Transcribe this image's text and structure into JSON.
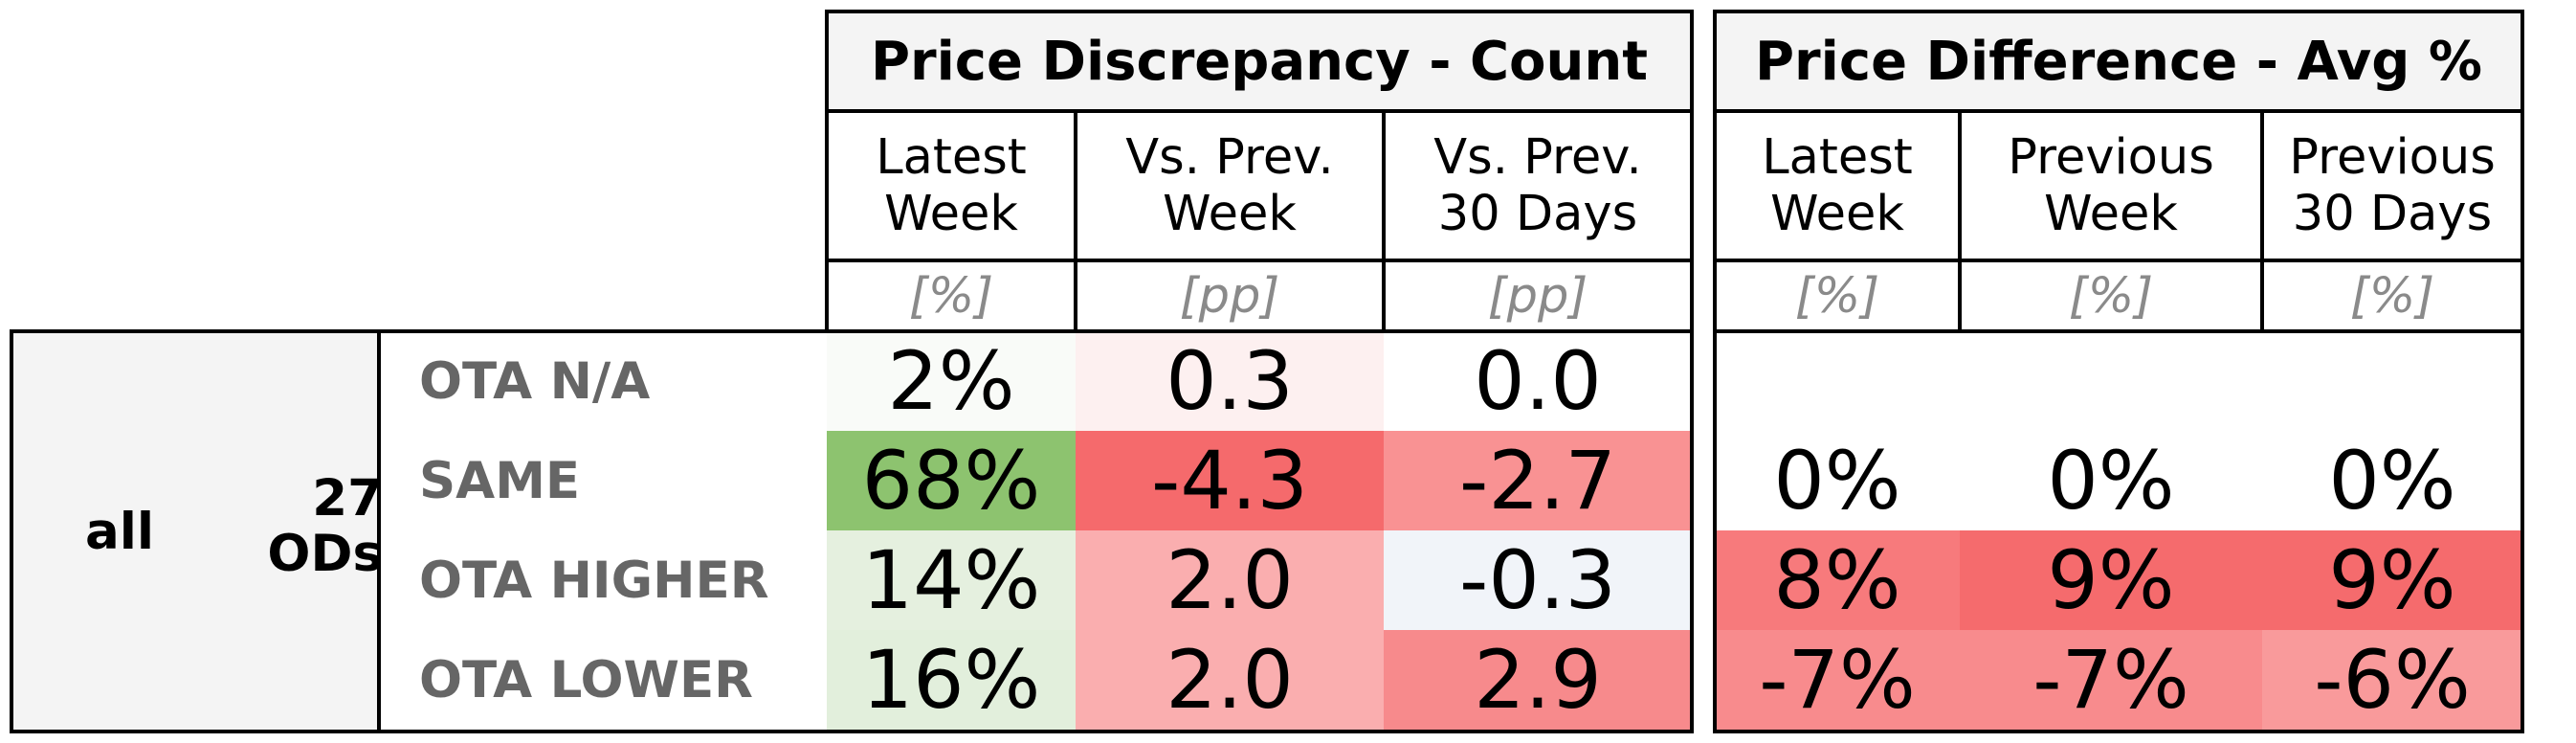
{
  "groups": {
    "count_title": "Price Discrepancy - Count",
    "diff_title": "Price Difference - Avg %"
  },
  "count_columns": [
    {
      "label": "Latest\nWeek",
      "unit": "[%]"
    },
    {
      "label": "Vs. Prev.\nWeek",
      "unit": "[pp]"
    },
    {
      "label": "Vs. Prev.\n30 Days",
      "unit": "[pp]"
    }
  ],
  "diff_columns": [
    {
      "label": "Latest\nWeek",
      "unit": "[%]"
    },
    {
      "label": "Previous\nWeek",
      "unit": "[%]"
    },
    {
      "label": "Previous\n30 Days",
      "unit": "[%]"
    }
  ],
  "segment": {
    "name": "all",
    "ods": "27\nODs"
  },
  "rows": [
    {
      "label": "OTA N/A",
      "count": [
        {
          "v": "2%",
          "bg": "#f9fbf8"
        },
        {
          "v": "0.3",
          "bg": "#fdf0f0"
        },
        {
          "v": "0.0",
          "bg": "#ffffff"
        }
      ],
      "diff": [
        {
          "v": "",
          "bg": "#ffffff"
        },
        {
          "v": "",
          "bg": "#ffffff"
        },
        {
          "v": "",
          "bg": "#ffffff"
        }
      ]
    },
    {
      "label": "SAME",
      "count": [
        {
          "v": "68%",
          "bg": "#8dc36f"
        },
        {
          "v": "-4.3",
          "bg": "#f56a6c"
        },
        {
          "v": "-2.7",
          "bg": "#f99293"
        }
      ],
      "diff": [
        {
          "v": "0%",
          "bg": "#ffffff"
        },
        {
          "v": "0%",
          "bg": "#ffffff"
        },
        {
          "v": "0%",
          "bg": "#ffffff"
        }
      ]
    },
    {
      "label": "OTA HIGHER",
      "count": [
        {
          "v": "14%",
          "bg": "#e5f0df"
        },
        {
          "v": "2.0",
          "bg": "#faaeaf"
        },
        {
          "v": "-0.3",
          "bg": "#f1f4f9"
        }
      ],
      "diff": [
        {
          "v": "8%",
          "bg": "#f77a7c"
        },
        {
          "v": "9%",
          "bg": "#f56b6d"
        },
        {
          "v": "9%",
          "bg": "#f56b6d"
        }
      ]
    },
    {
      "label": "OTA LOWER",
      "count": [
        {
          "v": "16%",
          "bg": "#e2efdc"
        },
        {
          "v": "2.0",
          "bg": "#faaeaf"
        },
        {
          "v": "2.9",
          "bg": "#f78a8c"
        }
      ],
      "diff": [
        {
          "v": "-7%",
          "bg": "#f88b8d"
        },
        {
          "v": "-7%",
          "bg": "#f88b8d"
        },
        {
          "v": "-6%",
          "bg": "#f99a9b"
        }
      ]
    }
  ]
}
